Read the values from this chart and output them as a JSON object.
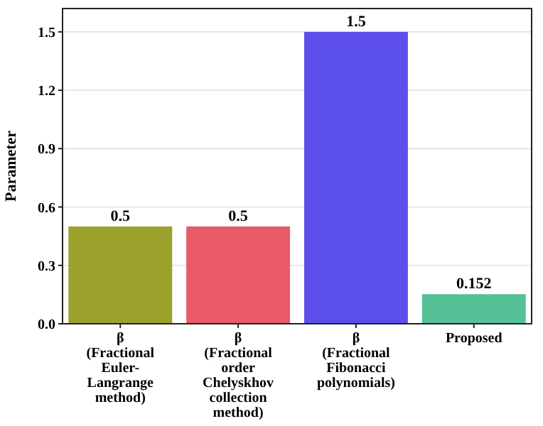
{
  "chart_data": {
    "type": "bar",
    "ylabel": "Parameter",
    "categories": [
      "β\n(Fractional\nEuler-\nLangrange\nmethod)",
      "β\n(Fractional\norder\nChelyskhov\ncollection\nmethod)",
      "β\n(Fractional\nFibonacci\npolynomials)",
      "Proposed"
    ],
    "values": [
      0.5,
      0.5,
      1.5,
      0.152
    ],
    "colors": [
      "#9ca12e",
      "#e85a68",
      "#5c4ee8",
      "#56c096"
    ],
    "ylim": [
      0,
      1.62
    ],
    "yticks": [
      {
        "value": 0,
        "label": "0.0"
      },
      0.3,
      0.6,
      0.9,
      1.2,
      1.5
    ],
    "grid": "y",
    "data_labels": true
  }
}
